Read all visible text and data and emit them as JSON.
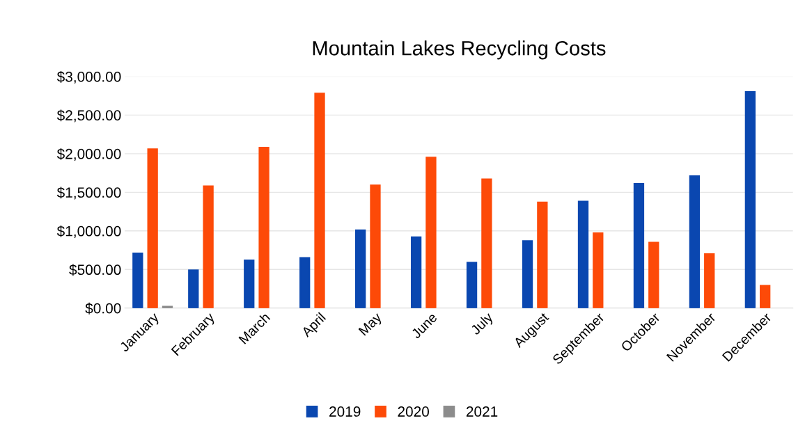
{
  "chart_data": {
    "type": "bar",
    "title": "Mountain Lakes Recycling Costs",
    "categories": [
      "January",
      "February",
      "March",
      "April",
      "May",
      "June",
      "July",
      "August",
      "September",
      "October",
      "November",
      "December"
    ],
    "series": [
      {
        "name": "2019",
        "color": "#0a47b0",
        "values": [
          710,
          490,
          620,
          650,
          1010,
          920,
          590,
          870,
          1380,
          1610,
          1710,
          2800
        ]
      },
      {
        "name": "2020",
        "color": "#fd4a08",
        "values": [
          2060,
          1580,
          2080,
          2780,
          1590,
          1950,
          1670,
          1370,
          970,
          850,
          700,
          290
        ]
      },
      {
        "name": "2021",
        "color": "#8c8c8c",
        "values": [
          20,
          null,
          null,
          null,
          null,
          null,
          null,
          null,
          null,
          null,
          null,
          null
        ]
      }
    ],
    "ylim": [
      0,
      3000
    ],
    "yticks": [
      {
        "value": 0,
        "label": "$0.00"
      },
      {
        "value": 500,
        "label": "$500.00"
      },
      {
        "value": 1000,
        "label": "$1,000.00"
      },
      {
        "value": 1500,
        "label": "$1,500.00"
      },
      {
        "value": 2000,
        "label": "$2,000.00"
      },
      {
        "value": 2500,
        "label": "$2,500.00"
      },
      {
        "value": 3000,
        "label": "$3,000.00"
      }
    ],
    "grid": "y",
    "legend": "bottom"
  }
}
